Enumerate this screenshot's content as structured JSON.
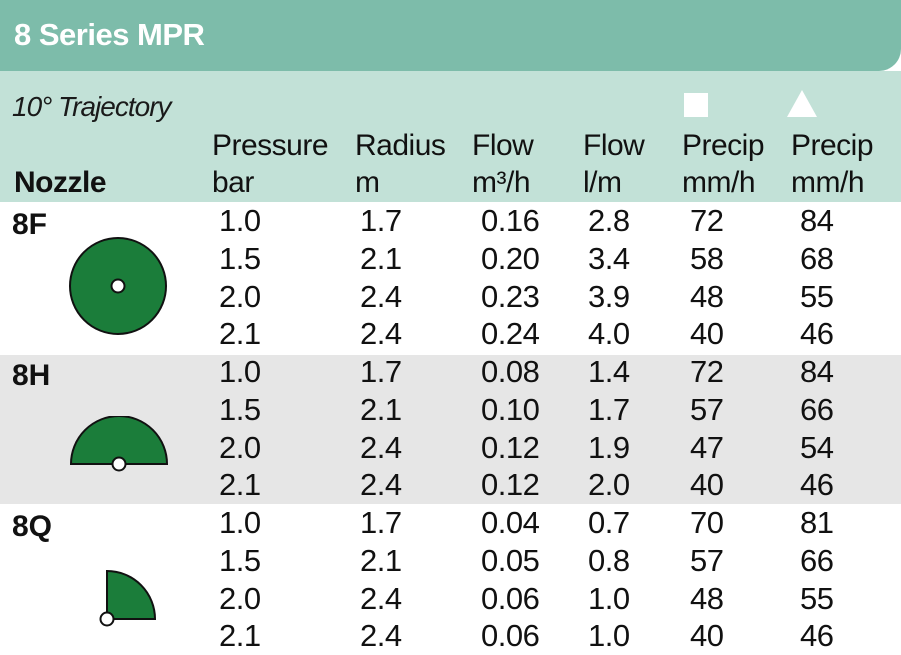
{
  "title": "8 Series MPR",
  "trajectory": "10° Trajectory",
  "columns": [
    {
      "line1": "",
      "line2": "Nozzle"
    },
    {
      "line1": "Pressure",
      "line2": "bar"
    },
    {
      "line1": "Radius",
      "line2": "m"
    },
    {
      "line1": "Flow",
      "line2": "m³/h"
    },
    {
      "line1": "Flow",
      "line2": "l/m"
    },
    {
      "line1": "Precip",
      "line2": "mm/h"
    },
    {
      "line1": "Precip",
      "line2": "mm/h"
    }
  ],
  "precip_symbols": [
    "square",
    "triangle"
  ],
  "colors": {
    "title_bar": "#7dbcaa",
    "header_band": "#c2e1d7",
    "shaded_row": "#e6e6e6",
    "nozzle_green": "#1b7d3a"
  },
  "nozzles": [
    {
      "name": "8F",
      "icon": "full-circle-icon",
      "rows": [
        [
          "1.0",
          "1.7",
          "0.16",
          "2.8",
          "72",
          "84"
        ],
        [
          "1.5",
          "2.1",
          "0.20",
          "3.4",
          "58",
          "68"
        ],
        [
          "2.0",
          "2.4",
          "0.23",
          "3.9",
          "48",
          "55"
        ],
        [
          "2.1",
          "2.4",
          "0.24",
          "4.0",
          "40",
          "46"
        ]
      ]
    },
    {
      "name": "8H",
      "icon": "half-circle-icon",
      "rows": [
        [
          "1.0",
          "1.7",
          "0.08",
          "1.4",
          "72",
          "84"
        ],
        [
          "1.5",
          "2.1",
          "0.10",
          "1.7",
          "57",
          "66"
        ],
        [
          "2.0",
          "2.4",
          "0.12",
          "1.9",
          "47",
          "54"
        ],
        [
          "2.1",
          "2.4",
          "0.12",
          "2.0",
          "40",
          "46"
        ]
      ]
    },
    {
      "name": "8Q",
      "icon": "quarter-circle-icon",
      "rows": [
        [
          "1.0",
          "1.7",
          "0.04",
          "0.7",
          "70",
          "81"
        ],
        [
          "1.5",
          "2.1",
          "0.05",
          "0.8",
          "57",
          "66"
        ],
        [
          "2.0",
          "2.4",
          "0.06",
          "1.0",
          "48",
          "55"
        ],
        [
          "2.1",
          "2.4",
          "0.06",
          "1.0",
          "40",
          "46"
        ]
      ]
    }
  ]
}
